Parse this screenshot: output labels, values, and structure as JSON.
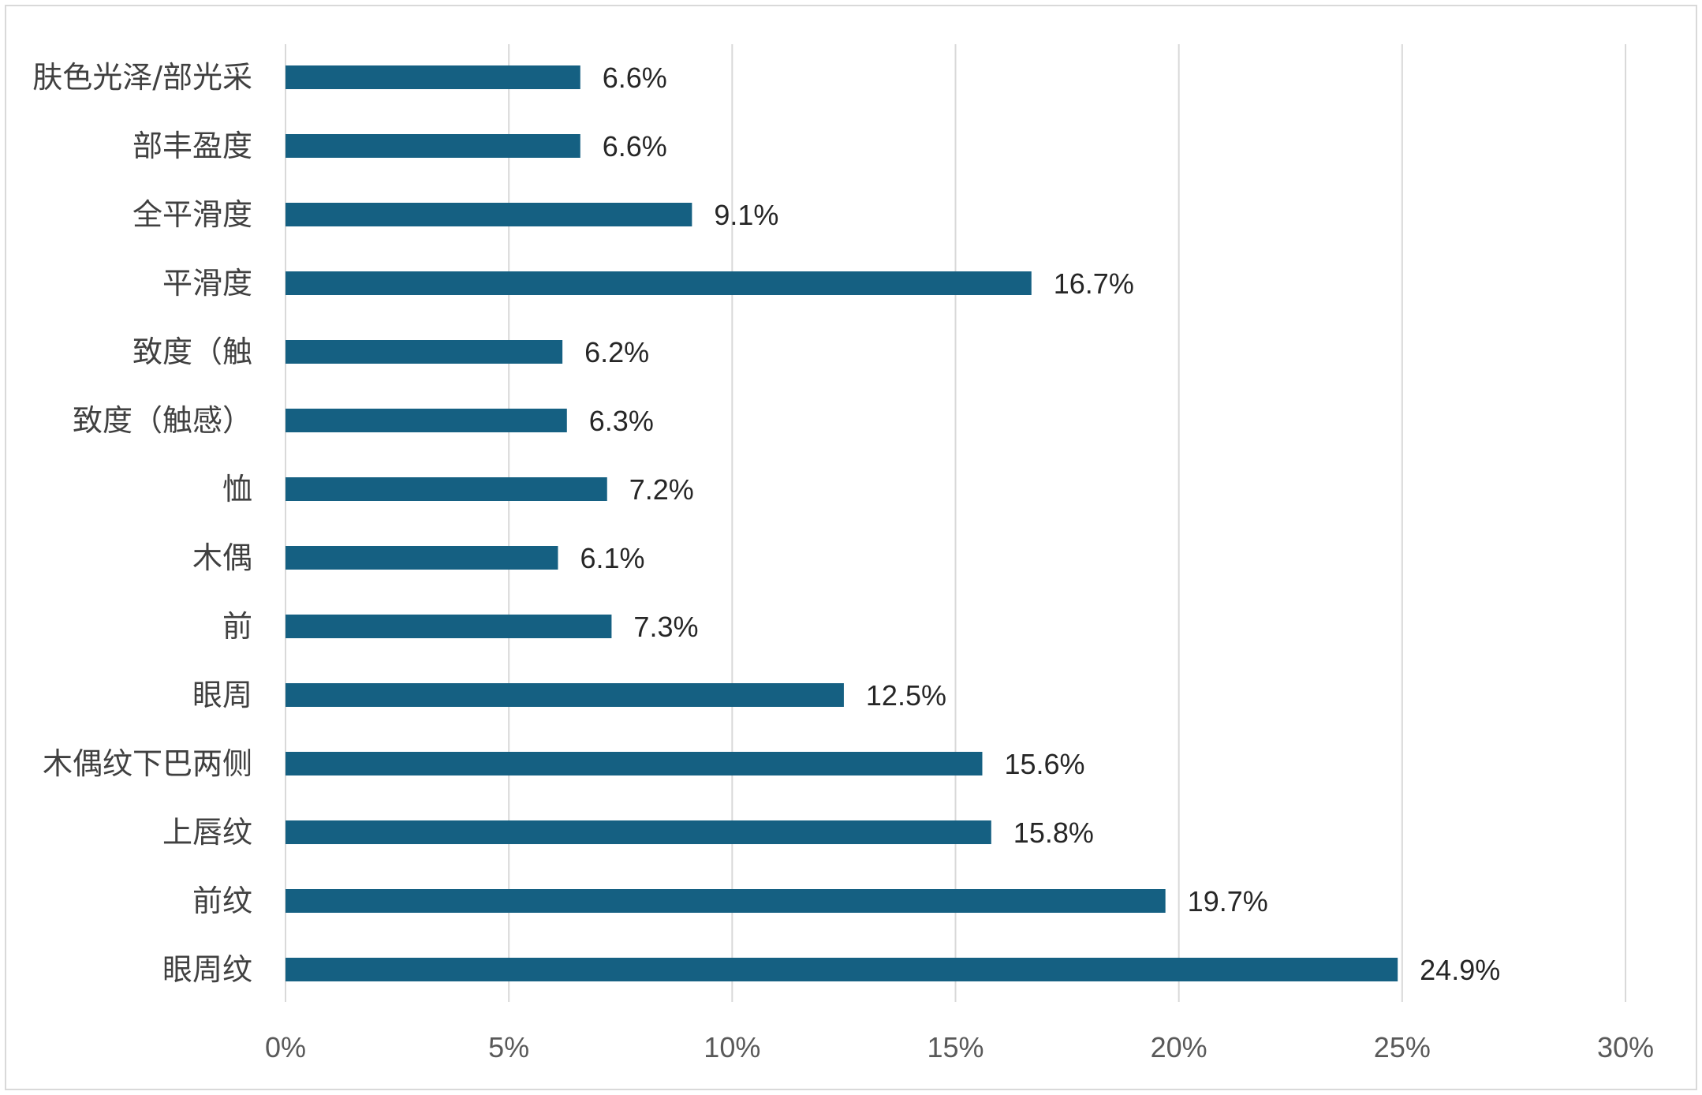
{
  "chart_data": {
    "type": "bar",
    "orientation": "horizontal",
    "title": "",
    "xlabel": "",
    "ylabel": "",
    "categories": [
      "肤色光泽/部光采",
      "部丰盈度",
      "全平滑度",
      "平滑度",
      "致度（触",
      "致度（触感）",
      "恤",
      "木偶",
      "前",
      "眼周",
      "木偶纹下巴两侧",
      "上唇纹",
      "前纹",
      "眼周纹"
    ],
    "values": [
      6.6,
      6.6,
      9.1,
      16.7,
      6.2,
      6.3,
      7.2,
      6.1,
      7.3,
      12.5,
      15.6,
      15.8,
      19.7,
      24.9
    ],
    "value_labels": [
      "6.6%",
      "6.6%",
      "9.1%",
      "16.7%",
      "6.2%",
      "6.3%",
      "7.2%",
      "6.1%",
      "7.3%",
      "12.5%",
      "15.6%",
      "15.8%",
      "19.7%",
      "24.9%"
    ],
    "x_ticks": [
      0,
      5,
      10,
      15,
      20,
      25,
      30
    ],
    "x_tick_labels": [
      "0%",
      "5%",
      "10%",
      "15%",
      "20%",
      "25%",
      "30%"
    ],
    "xlim": [
      0,
      30
    ],
    "grid": true,
    "legend": "none",
    "colors": {
      "bar": "#156082",
      "grid": "#d9d9d9",
      "text": "#404040"
    }
  }
}
